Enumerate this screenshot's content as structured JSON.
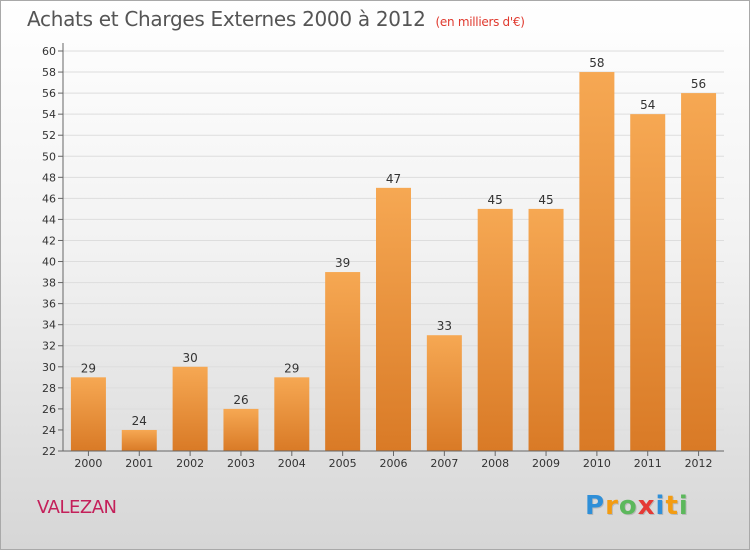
{
  "title": "Achats et Charges Externes 2000 à 2012",
  "subtitle": "(en milliers d'€)",
  "commune": "VALEZAN",
  "logo": {
    "text": "Proxiti",
    "letters": [
      "P",
      "r",
      "o",
      "x",
      "i",
      "t",
      "i"
    ],
    "colors": [
      "#2f8fd8",
      "#f39c12",
      "#5cb85c",
      "#e53935",
      "#2f8fd8",
      "#f39c12",
      "#5cb85c"
    ]
  },
  "colors": {
    "bar_light": "#f6a853",
    "bar_dark": "#d97a26",
    "grid": "#dddddd",
    "axis_text": "#333333"
  },
  "chart_data": {
    "type": "bar",
    "categories": [
      "2000",
      "2001",
      "2002",
      "2003",
      "2004",
      "2005",
      "2006",
      "2007",
      "2008",
      "2009",
      "2010",
      "2011",
      "2012"
    ],
    "values": [
      29,
      24,
      30,
      26,
      29,
      39,
      47,
      33,
      45,
      45,
      58,
      54,
      56
    ],
    "ylim": [
      22,
      60
    ],
    "yticks": [
      22,
      24,
      26,
      28,
      30,
      32,
      34,
      36,
      38,
      40,
      42,
      44,
      46,
      48,
      50,
      52,
      54,
      56,
      58,
      60
    ],
    "grid": true
  }
}
